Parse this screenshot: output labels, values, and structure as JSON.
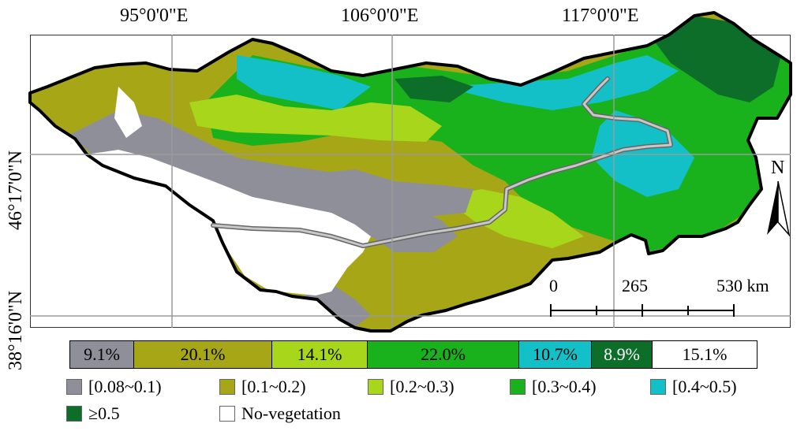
{
  "lon_labels": [
    "95°0'0\"E",
    "106°0'0\"E",
    "117°0'0\"E"
  ],
  "lat_labels": [
    "46°17'0\"N",
    "38°16'0\"N"
  ],
  "north_label": "N",
  "scale": {
    "label_0": "0",
    "label_1": "265",
    "label_2": "530 km"
  },
  "percentages": [
    {
      "label": "9.1%",
      "color": "#8f8f9a"
    },
    {
      "label": "20.1%",
      "color": "#a6a617"
    },
    {
      "label": "14.1%",
      "color": "#a7d61a"
    },
    {
      "label": "22.0%",
      "color": "#19b21c"
    },
    {
      "label": "10.7%",
      "color": "#13c0c8"
    },
    {
      "label": "8.9%",
      "color": "#0d6e2a"
    },
    {
      "label": "15.1%",
      "color": "#ffffff"
    }
  ],
  "legend": [
    {
      "label": "[0.08~0.1)",
      "color": "#8f8f9a"
    },
    {
      "label": "[0.1~0.2)",
      "color": "#a6a617"
    },
    {
      "label": "[0.2~0.3)",
      "color": "#a7d61a"
    },
    {
      "label": "[0.3~0.4)",
      "color": "#19b21c"
    },
    {
      "label": "[0.4~0.5)",
      "color": "#13c0c8"
    },
    {
      "label": "≥0.5",
      "color": "#0d6e2a"
    },
    {
      "label": "No-vegetation",
      "color": "#ffffff"
    }
  ]
}
